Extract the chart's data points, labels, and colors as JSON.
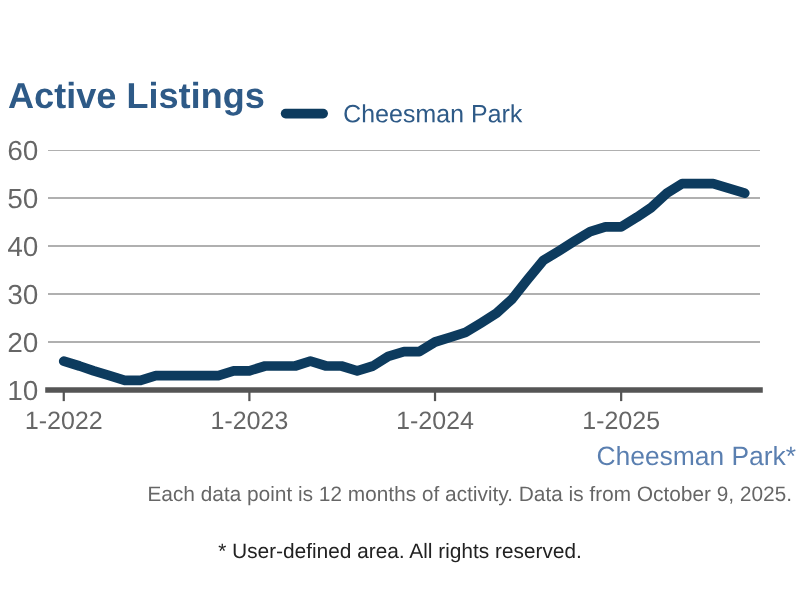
{
  "chart_data": {
    "type": "line",
    "title": "Active Listings",
    "subtitle": "Cheesman Park*",
    "x": [
      "2022-01",
      "2022-02",
      "2022-03",
      "2022-04",
      "2022-05",
      "2022-06",
      "2022-07",
      "2022-08",
      "2022-09",
      "2022-10",
      "2022-11",
      "2022-12",
      "2023-01",
      "2023-02",
      "2023-03",
      "2023-04",
      "2023-05",
      "2023-06",
      "2023-07",
      "2023-08",
      "2023-09",
      "2023-10",
      "2023-11",
      "2023-12",
      "2024-01",
      "2024-02",
      "2024-03",
      "2024-04",
      "2024-05",
      "2024-06",
      "2024-07",
      "2024-08",
      "2024-09",
      "2024-10",
      "2024-11",
      "2024-12",
      "2025-01",
      "2025-02",
      "2025-03",
      "2025-04",
      "2025-05",
      "2025-06",
      "2025-07",
      "2025-08",
      "2025-09"
    ],
    "series": [
      {
        "name": "Cheesman Park",
        "color": "#0d3b5e",
        "values": [
          16,
          15,
          14,
          13,
          12,
          12,
          13,
          13,
          13,
          13,
          13,
          14,
          14,
          15,
          15,
          15,
          16,
          15,
          15,
          14,
          15,
          17,
          18,
          18,
          20,
          21,
          22,
          24,
          26,
          29,
          33,
          37,
          39,
          41,
          43,
          44,
          44,
          46,
          48,
          51,
          53,
          53,
          53,
          52,
          51
        ]
      }
    ],
    "xlim": [
      "2021-12",
      "2025-10"
    ],
    "xticks": [
      {
        "value": "2022-01",
        "label": "1-2022"
      },
      {
        "value": "2023-01",
        "label": "1-2023"
      },
      {
        "value": "2024-01",
        "label": "1-2024"
      },
      {
        "value": "2025-01",
        "label": "1-2025"
      }
    ],
    "ylim": [
      10,
      60
    ],
    "yticks": [
      10,
      20,
      30,
      40,
      50,
      60
    ],
    "grid": "y",
    "legend": "top",
    "marker": "none",
    "line_style": "solid",
    "annotations": [
      "Each data point is 12 months of activity. Data is from October 9, 2025.",
      "* User-defined area. All rights reserved."
    ]
  }
}
